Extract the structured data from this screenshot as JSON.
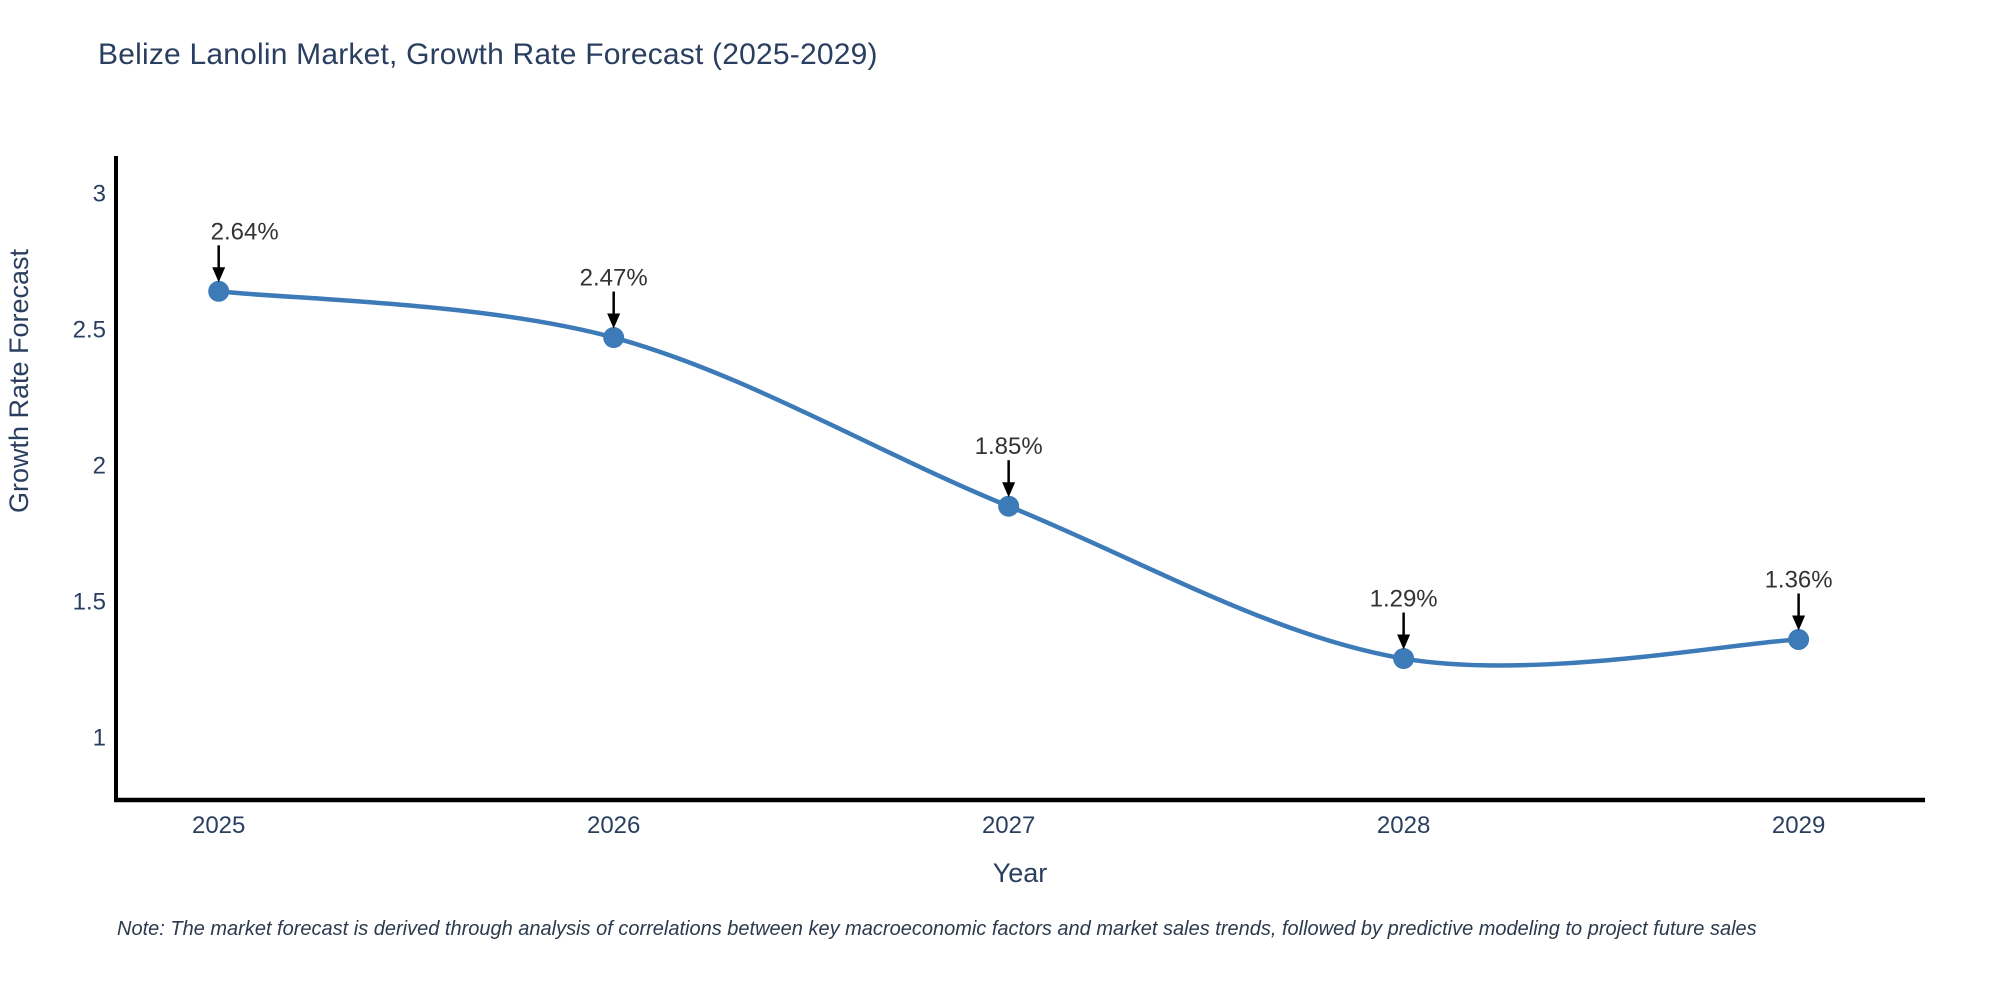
{
  "title": "Belize Lanolin Market, Growth Rate Forecast (2025-2029)",
  "note": "Note: The market forecast is derived through analysis of correlations between key macroeconomic factors and market sales trends, followed by predictive modeling to project future sales",
  "chart_data": {
    "type": "line",
    "title": "Belize Lanolin Market, Growth Rate Forecast (2025-2029)",
    "xlabel": "Year",
    "ylabel": "Growth Rate Forecast",
    "x": [
      2025,
      2026,
      2027,
      2028,
      2029
    ],
    "categories": [
      "2025",
      "2026",
      "2027",
      "2028",
      "2029"
    ],
    "series": [
      {
        "name": "Growth Rate Forecast",
        "values": [
          2.64,
          2.47,
          1.85,
          1.29,
          1.36
        ],
        "point_labels": [
          "2.64%",
          "2.47%",
          "1.85%",
          "1.29%",
          "1.36%"
        ]
      }
    ],
    "annotation_dx": [
      26,
      0,
      0,
      0,
      0
    ],
    "yticks": [
      1,
      1.5,
      2,
      2.5,
      3
    ],
    "ytick_labels": [
      "1",
      "1.5",
      "2",
      "2.5",
      "3"
    ],
    "ylim": [
      0.77,
      3.13
    ],
    "xlim": [
      2024.74,
      2029.32
    ],
    "grid": false,
    "legend_position": "none",
    "line_shape": "spline",
    "colors": {
      "line": "#3d7ab8",
      "marker": "#3d7ab8",
      "axis_line": "#000000",
      "tick_text": "#2a3f5f",
      "axis_title_text": "#2a3f5f",
      "chart_title_text": "#2a3f5f",
      "annotation_text": "#333333",
      "annotation_arrow": "#000000",
      "note_text": "#2b3a4d",
      "background": "#ffffff"
    }
  }
}
